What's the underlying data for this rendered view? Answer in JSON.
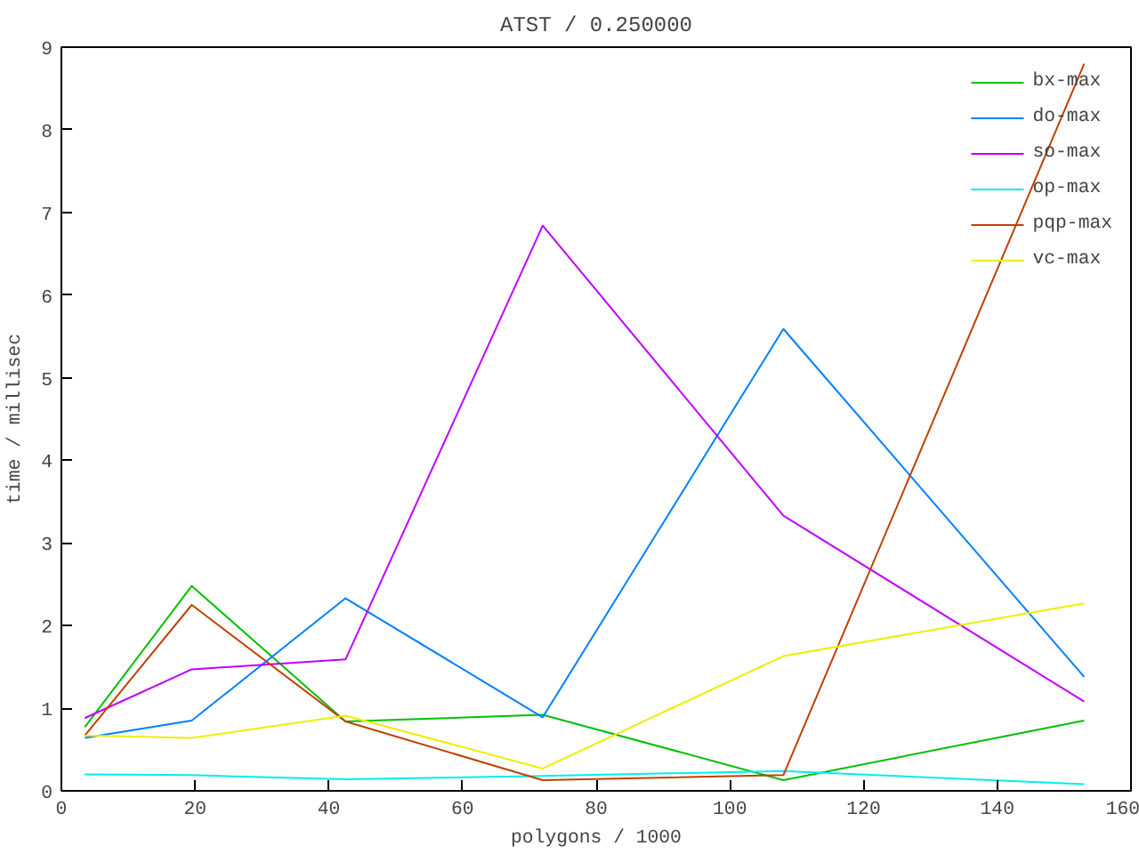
{
  "chart_data": {
    "type": "line",
    "title": "ATST / 0.250000",
    "xlabel": "polygons / 1000",
    "ylabel": "time / millisec",
    "x": [
      3.5,
      19.5,
      42.5,
      72,
      108,
      153
    ],
    "series": [
      {
        "name": "bx-max",
        "color": "#00c000",
        "values": [
          0.77,
          2.48,
          0.84,
          0.92,
          0.13,
          0.85
        ]
      },
      {
        "name": "do-max",
        "color": "#0080ff",
        "values": [
          0.64,
          0.85,
          2.33,
          0.89,
          5.59,
          1.38
        ]
      },
      {
        "name": "so-max",
        "color": "#c000ff",
        "values": [
          0.88,
          1.47,
          1.59,
          6.84,
          3.33,
          1.08
        ]
      },
      {
        "name": "op-max",
        "color": "#00eeee",
        "values": [
          0.2,
          0.19,
          0.14,
          0.18,
          0.24,
          0.08
        ]
      },
      {
        "name": "pqp-max",
        "color": "#c04000",
        "values": [
          0.67,
          2.25,
          0.84,
          0.13,
          0.19,
          8.8
        ]
      },
      {
        "name": "vc-max",
        "color": "#eeee00",
        "values": [
          0.67,
          0.64,
          0.91,
          0.27,
          1.63,
          2.27
        ]
      }
    ],
    "xlim": [
      0,
      160
    ],
    "xticks": [
      0,
      20,
      40,
      60,
      80,
      100,
      120,
      140,
      160
    ],
    "ylim": [
      0,
      9
    ],
    "yticks": [
      0,
      1,
      2,
      3,
      4,
      5,
      6,
      7,
      8,
      9
    ],
    "grid": false,
    "legend": "top right",
    "marker": "none",
    "line_style": "solid"
  }
}
